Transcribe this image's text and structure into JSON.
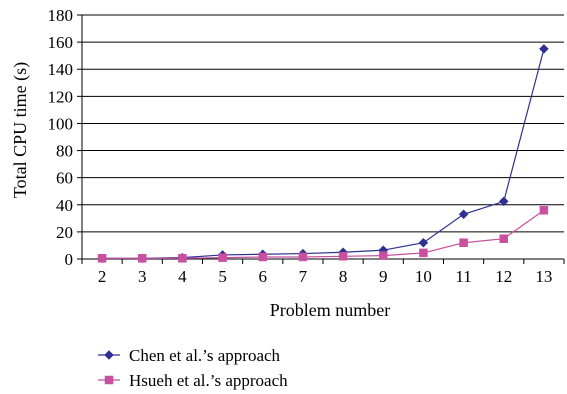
{
  "chart_data": {
    "type": "line",
    "title": "",
    "xlabel": "Problem number",
    "ylabel": "Total CPU time (s)",
    "categories": [
      "2",
      "3",
      "4",
      "5",
      "6",
      "7",
      "8",
      "9",
      "10",
      "11",
      "12",
      "13"
    ],
    "ylim": [
      0,
      180
    ],
    "yticks": [
      0,
      20,
      40,
      60,
      80,
      100,
      120,
      140,
      160,
      180
    ],
    "grid": "horizontal",
    "legend_position": "bottom",
    "series": [
      {
        "name": "Chen et al.’s approach",
        "marker": "diamond",
        "color": "#2e3192",
        "values": [
          0.5,
          0.5,
          1,
          3,
          3.5,
          4,
          5,
          6.5,
          12,
          33,
          42.5,
          155
        ]
      },
      {
        "name": "Hsueh et al.’s approach",
        "marker": "square",
        "color": "#c8509f",
        "values": [
          0.5,
          0.5,
          0.5,
          1,
          1.5,
          1.5,
          2,
          2.5,
          4.5,
          12,
          15,
          36
        ]
      }
    ]
  }
}
